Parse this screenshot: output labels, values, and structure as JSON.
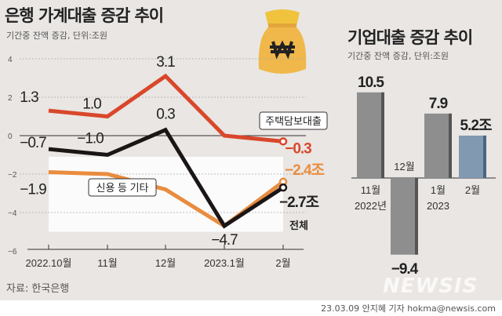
{
  "left_chart_title": "은행 가계대출 증감 추이",
  "left_chart_subtitle": "기간중 잔액 증감, 단위:조원",
  "right_chart_title": "기업대출 증감 추이",
  "right_chart_subtitle": "기간중 잔액 증감, 단위:조원",
  "source": "자료: 한국은행",
  "credit": "23.03.09 안지혜 기자 hokma@newsis.com",
  "watermark": "NEWSIS",
  "icon": "money-bag-won-icon",
  "chart_data": [
    {
      "type": "line",
      "title": "은행 가계대출 증감 추이",
      "ylim": [
        -6,
        4
      ],
      "yticks": [
        "4",
        "2",
        "0",
        "−2",
        "−4",
        "−6"
      ],
      "ytick_values": [
        4,
        2,
        0,
        -2,
        -4,
        -6
      ],
      "categories": [
        "2022.10월",
        "11월",
        "12월",
        "2023.1월",
        "2월"
      ],
      "series": [
        {
          "name": "주택담보대출",
          "color": "#d9472b",
          "values": [
            1.3,
            1.0,
            3.1,
            0.0,
            -0.3
          ],
          "labels": [
            "1.3",
            "1.0",
            "3.1",
            "",
            "−0.3"
          ]
        },
        {
          "name": "신용 등 기타",
          "color": "#e98c3f",
          "values": [
            -1.9,
            -2.0,
            -2.8,
            -4.7,
            -2.4
          ],
          "labels": [
            "−1.9",
            "",
            "",
            "",
            "−2.4조"
          ]
        },
        {
          "name": "전체",
          "color": "#1b1616",
          "values": [
            -0.7,
            -1.0,
            0.3,
            -4.7,
            -2.7
          ],
          "labels": [
            "−0.7",
            "−1.0",
            "0.3",
            "−4.7",
            "−2.7조"
          ]
        }
      ]
    },
    {
      "type": "bar",
      "title": "기업대출 증감 추이",
      "categories": [
        "11월\n2022년",
        "12월",
        "1월\n2023",
        "2월"
      ],
      "category_lines": [
        [
          "11월",
          "2022년"
        ],
        [
          "12월"
        ],
        [
          "1월",
          "2023"
        ],
        [
          "2월"
        ]
      ],
      "values": [
        10.5,
        -9.4,
        7.9,
        5.2
      ],
      "labels": [
        "10.5",
        "−9.4",
        "7.9",
        "5.2조"
      ],
      "colors": [
        "#8e8e8e",
        "#8e8e8e",
        "#8e8e8e",
        "#8299b2"
      ]
    }
  ]
}
